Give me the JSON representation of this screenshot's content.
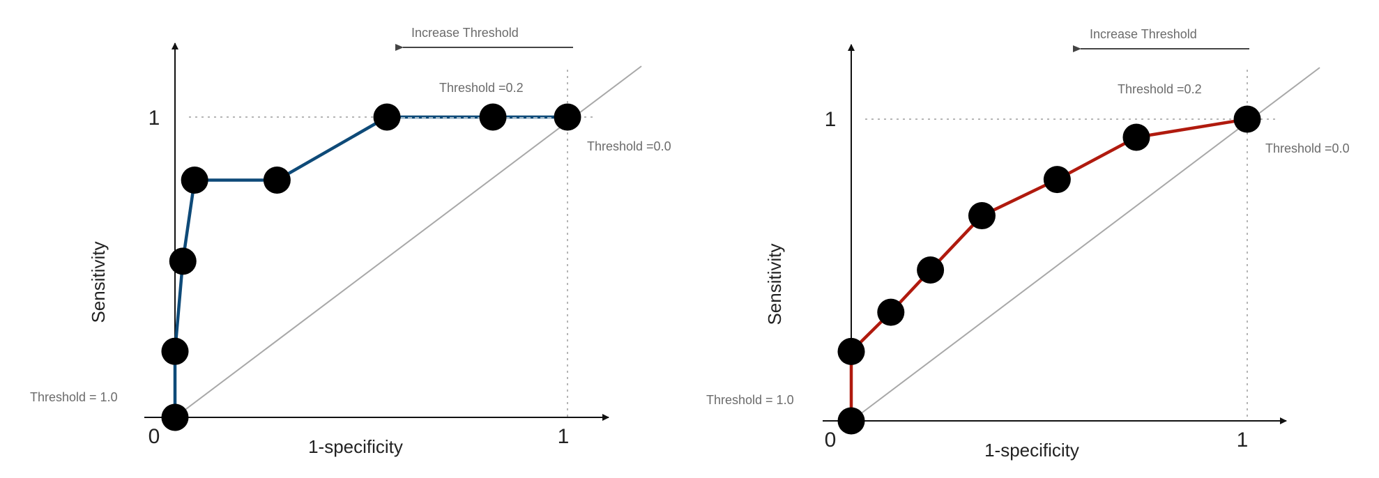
{
  "chart_data": [
    {
      "type": "line",
      "xlabel": "1-specificity",
      "ylabel": "Sensitivity",
      "x_ticks": [
        "0",
        "1"
      ],
      "y_ticks": [
        "1"
      ],
      "xlim": [
        0,
        1
      ],
      "ylim": [
        0,
        1
      ],
      "grid": false,
      "reference_line": "diagonal",
      "series_color": "#0e4a78",
      "annotations": {
        "increase": "Increase Threshold",
        "threshold_low": "Threshold = 1.0",
        "threshold_mid": "Threshold =0.2",
        "threshold_high": "Threshold =0.0"
      },
      "series": [
        {
          "x": [
            0.0,
            0.0,
            0.02,
            0.05,
            0.26,
            0.54,
            0.81,
            1.0
          ],
          "y": [
            0.0,
            0.22,
            0.52,
            0.79,
            0.79,
            1.0,
            1.0,
            1.0
          ]
        }
      ]
    },
    {
      "type": "line",
      "xlabel": "1-specificity",
      "ylabel": "Sensitivity",
      "x_ticks": [
        "0",
        "1"
      ],
      "y_ticks": [
        "1"
      ],
      "xlim": [
        0,
        1
      ],
      "ylim": [
        0,
        1
      ],
      "grid": false,
      "reference_line": "diagonal",
      "series_color": "#b01a0e",
      "annotations": {
        "increase": "Increase Threshold",
        "threshold_low": "Threshold = 1.0",
        "threshold_mid": "Threshold =0.2",
        "threshold_high": "Threshold =0.0"
      },
      "series": [
        {
          "x": [
            0.0,
            0.0,
            0.1,
            0.2,
            0.33,
            0.52,
            0.72,
            1.0
          ],
          "y": [
            0.0,
            0.23,
            0.36,
            0.5,
            0.68,
            0.8,
            0.94,
            1.0
          ]
        }
      ]
    }
  ]
}
